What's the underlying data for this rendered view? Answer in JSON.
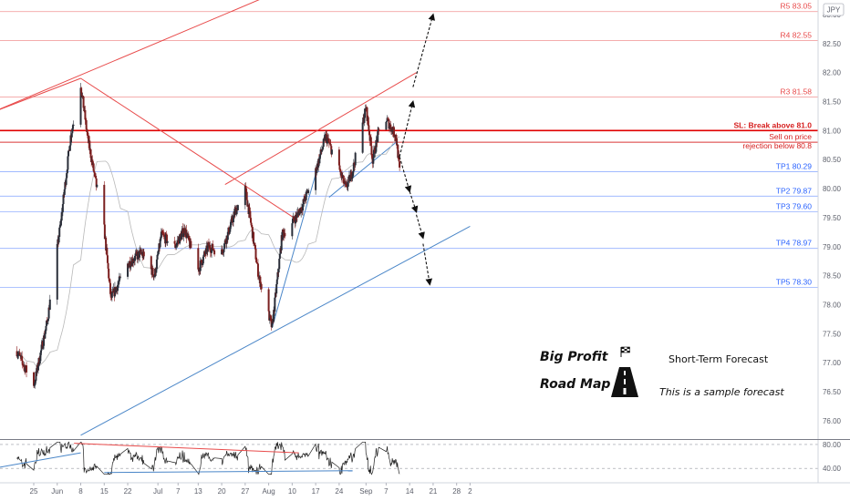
{
  "badge": "JPY",
  "overlay": {
    "title_line1": "Big Profit",
    "title_line2": "Road Map",
    "subtitle": "Short-Term Forecast",
    "note": "This is a sample forecast"
  },
  "colors": {
    "up": "#2a2e39",
    "down": "#8a1a1a",
    "resistance": "#e84b4b",
    "support": "#4a86c8",
    "target": "#2962ff"
  },
  "chart_data": {
    "type": "candlestick",
    "title": "",
    "xlabel": "",
    "ylabel": "",
    "ylim": [
      75.7,
      83.25
    ],
    "y_ticks": [
      "83.00",
      "82.50",
      "82.00",
      "81.50",
      "81.00",
      "80.50",
      "80.00",
      "79.50",
      "79.00",
      "78.50",
      "78.00",
      "77.50",
      "77.00",
      "76.50",
      "76.00"
    ],
    "x_ticks": [
      "25",
      "Jun",
      "8",
      "15",
      "22",
      "Jul",
      "7",
      "13",
      "20",
      "27",
      "Aug",
      "10",
      "17",
      "24",
      "Sep",
      "7",
      "14",
      "21",
      "28",
      "2"
    ],
    "price_path": [
      [
        "2020-05-20",
        77.2
      ],
      [
        "2020-05-25",
        76.6
      ],
      [
        "2020-05-29",
        77.7
      ],
      [
        "2020-06-02",
        79.4
      ],
      [
        "2020-06-05",
        80.9
      ],
      [
        "2020-06-08",
        81.8
      ],
      [
        "2020-06-10",
        80.9
      ],
      [
        "2020-06-15",
        79.3
      ],
      [
        "2020-06-17",
        78.1
      ],
      [
        "2020-06-22",
        78.7
      ],
      [
        "2020-06-26",
        78.9
      ],
      [
        "2020-06-30",
        78.5
      ],
      [
        "2020-07-02",
        79.2
      ],
      [
        "2020-07-06",
        79.0
      ],
      [
        "2020-07-09",
        79.3
      ],
      [
        "2020-07-13",
        78.6
      ],
      [
        "2020-07-16",
        79.0
      ],
      [
        "2020-07-20",
        78.9
      ],
      [
        "2020-07-24",
        79.6
      ],
      [
        "2020-07-27",
        80.0
      ],
      [
        "2020-07-29",
        79.3
      ],
      [
        "2020-07-31",
        78.5
      ],
      [
        "2020-08-04",
        77.6
      ],
      [
        "2020-08-07",
        79.2
      ],
      [
        "2020-08-11",
        79.5
      ],
      [
        "2020-08-13",
        79.7
      ],
      [
        "2020-08-17",
        80.3
      ],
      [
        "2020-08-20",
        80.9
      ],
      [
        "2020-08-23",
        80.5
      ],
      [
        "2020-08-26",
        80.0
      ],
      [
        "2020-08-28",
        80.3
      ],
      [
        "2020-09-01",
        81.4
      ],
      [
        "2020-09-03",
        80.5
      ],
      [
        "2020-09-06",
        81.3
      ],
      [
        "2020-09-08",
        81.1
      ],
      [
        "2020-09-10",
        80.9
      ],
      [
        "2020-09-11",
        80.3
      ]
    ],
    "levels": [
      {
        "label": "R5 83.05",
        "value": 83.05,
        "kind": "resistance"
      },
      {
        "label": "R4 82.55",
        "value": 82.55,
        "kind": "resistance"
      },
      {
        "label": "R3 81.58",
        "value": 81.58,
        "kind": "resistance"
      },
      {
        "label": "SL: Break above 81.0",
        "value": 81.0,
        "kind": "stop"
      },
      {
        "label": "Sell on price",
        "value": 80.83,
        "kind": "entry"
      },
      {
        "label": "rejection below 80.8",
        "value": 80.8,
        "kind": "entry"
      },
      {
        "label": "TP1 80.29",
        "value": 80.29,
        "kind": "target"
      },
      {
        "label": "TP2 79.87",
        "value": 79.87,
        "kind": "target"
      },
      {
        "label": "TP3 79.60",
        "value": 79.6,
        "kind": "target"
      },
      {
        "label": "TP4 78.97",
        "value": 78.97,
        "kind": "target"
      },
      {
        "label": "TP5 78.30",
        "value": 78.3,
        "kind": "target"
      }
    ],
    "oscillator": {
      "ylim": [
        28,
        86
      ],
      "ticks": [
        "80.00",
        "40.00"
      ]
    }
  }
}
